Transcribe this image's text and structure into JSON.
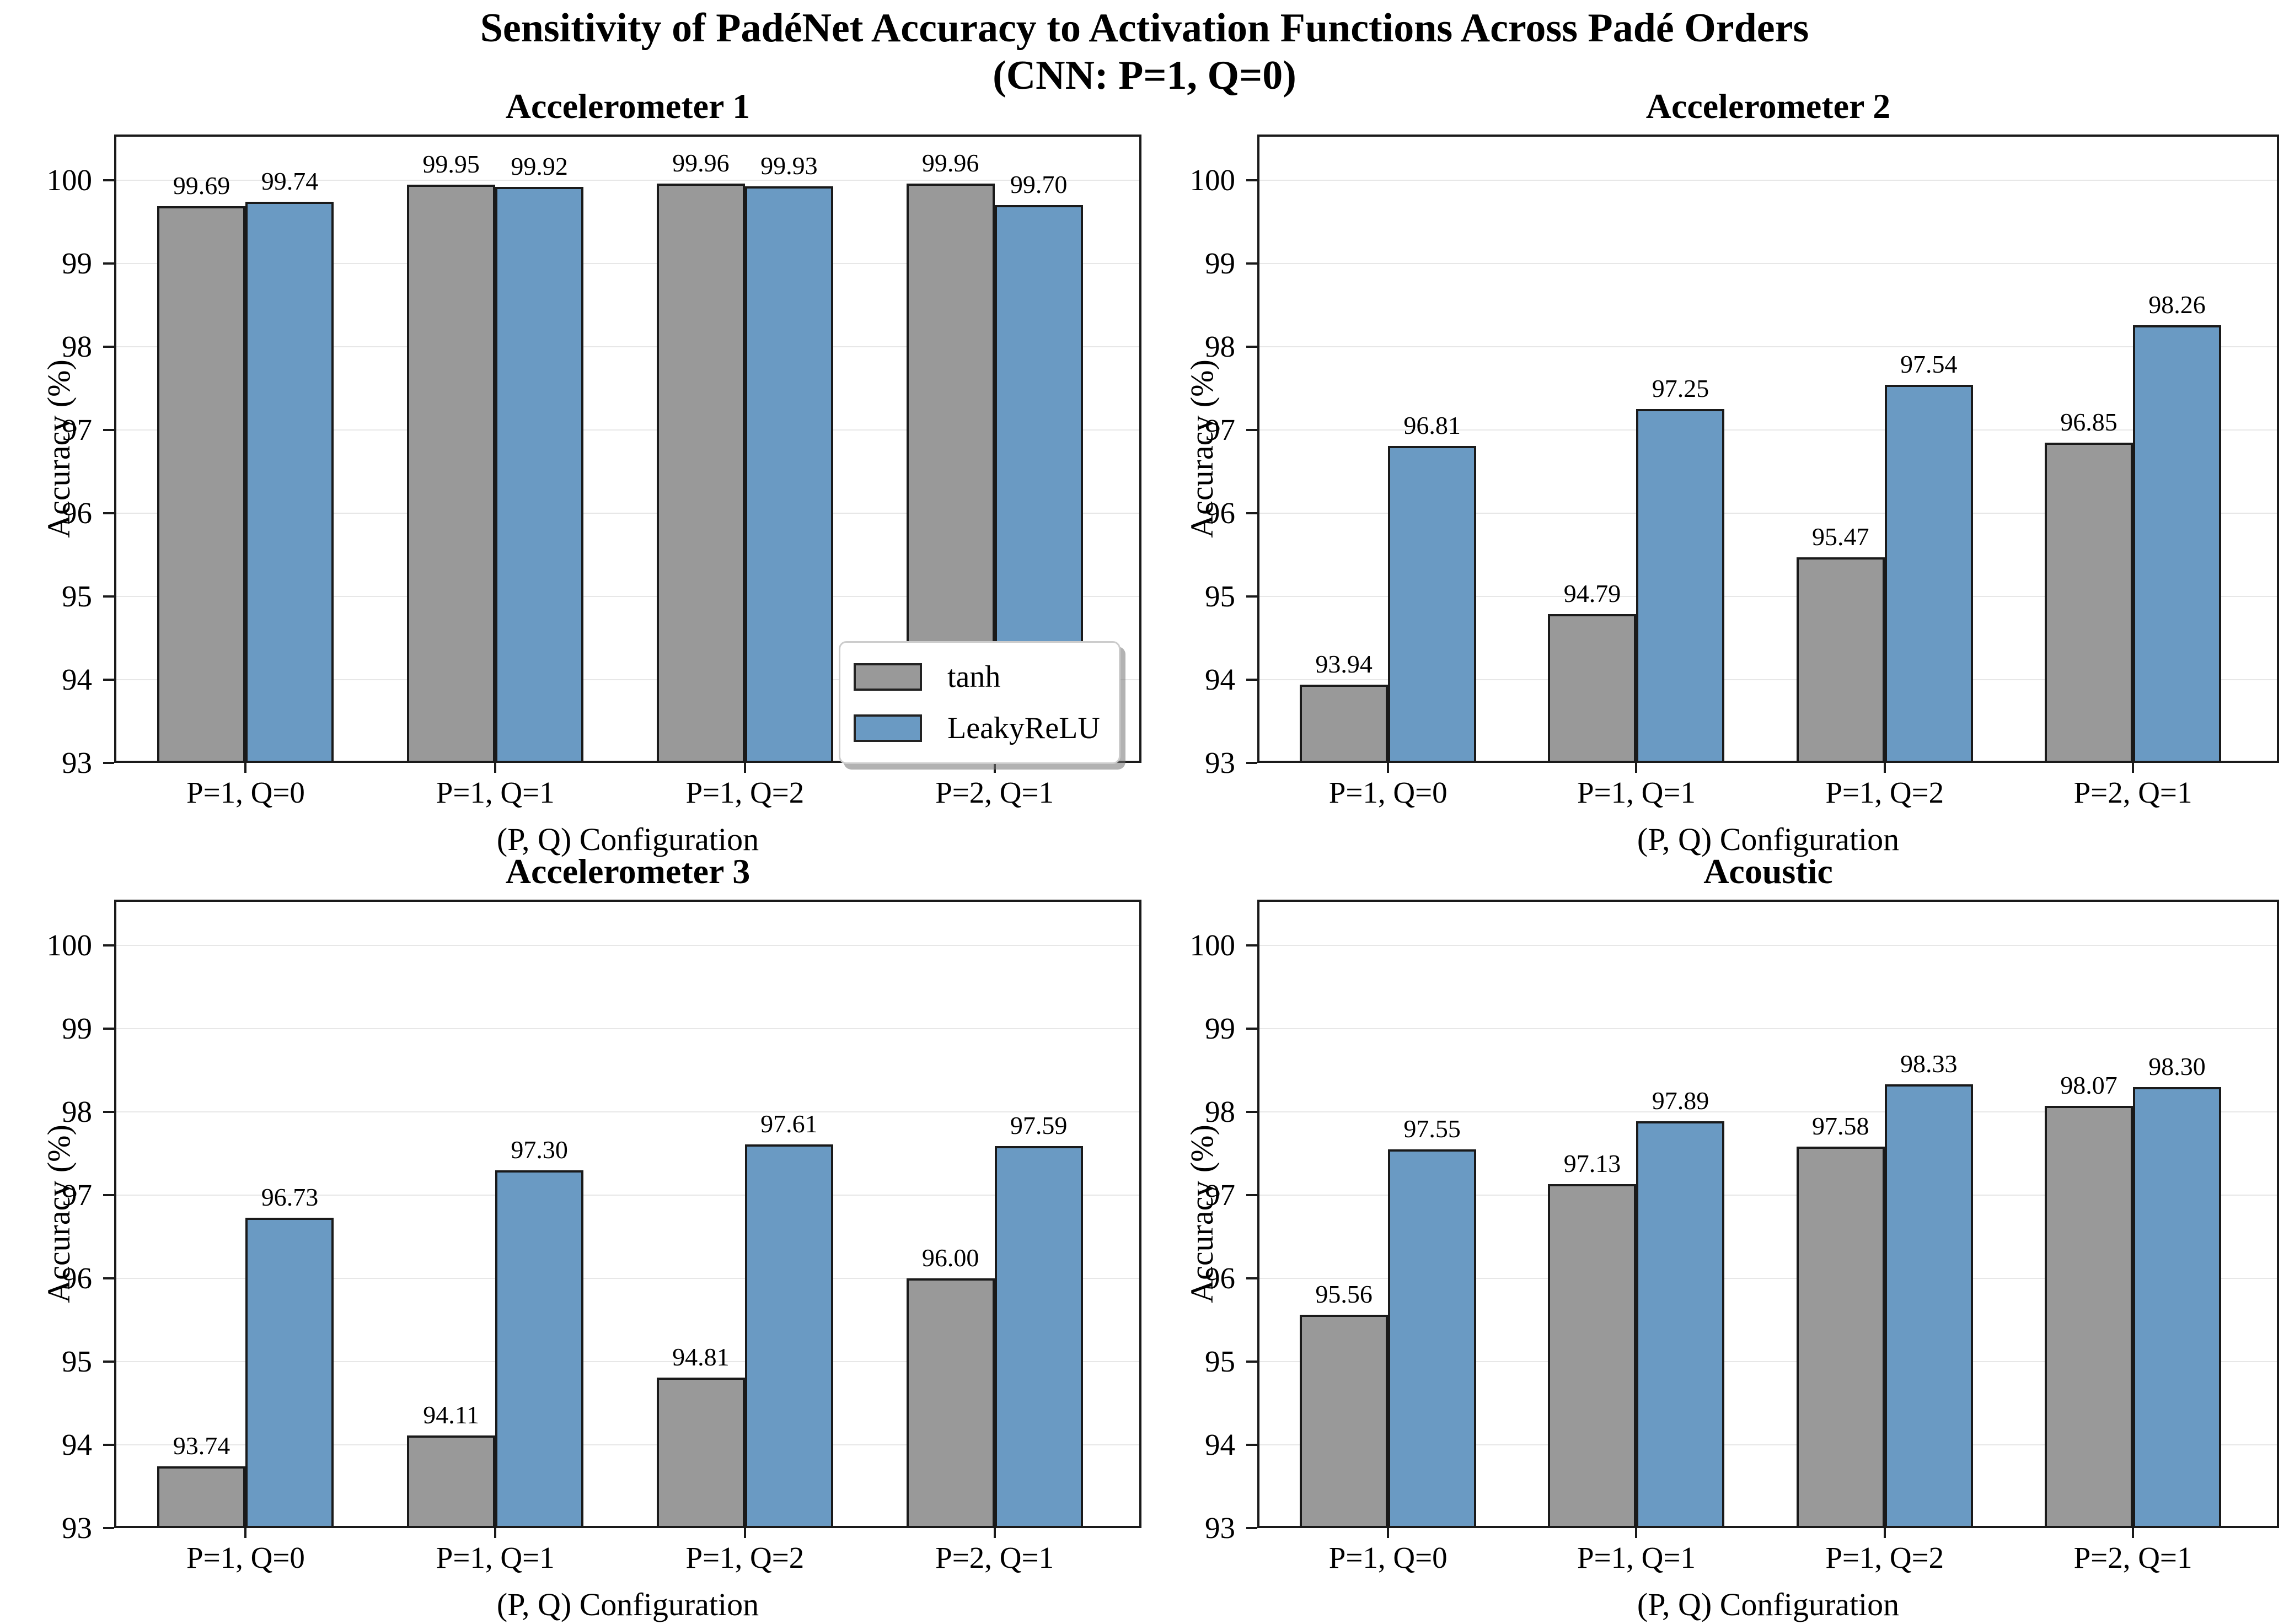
{
  "figure": {
    "title_line1": "Sensitivity of PadéNet Accuracy to Activation Functions Across Padé Orders",
    "title_line2": "(CNN: P=1, Q=0)"
  },
  "legend": {
    "items": [
      {
        "label": "tanh",
        "color": "#999999"
      },
      {
        "label": "LeakyReLU",
        "color": "#6A9AC3"
      }
    ],
    "position": "lower right of Accelerometer 1 panel"
  },
  "colors": {
    "tanh_bar": "#999999",
    "leakyrelu_bar": "#6A9AC3",
    "bar_edge": "#1a1a1a",
    "gridline": "#e7e7e7",
    "spine": "#1a1a1a",
    "text": "#000000"
  },
  "chart_data": [
    {
      "type": "bar",
      "title": "Accelerometer 1",
      "xlabel": "(P, Q) Configuration",
      "ylabel": "Accuracy (%)",
      "categories": [
        "P=1, Q=0",
        "P=1, Q=1",
        "P=1, Q=2",
        "P=2, Q=1"
      ],
      "series": [
        {
          "name": "tanh",
          "values": [
            99.69,
            99.95,
            99.96,
            99.96
          ]
        },
        {
          "name": "LeakyReLU",
          "values": [
            99.74,
            99.92,
            99.93,
            99.7
          ]
        }
      ],
      "ylim": [
        93,
        100.55
      ],
      "yticks": [
        93,
        94,
        95,
        96,
        97,
        98,
        99,
        100
      ],
      "grid": true,
      "legend_in_panel": true
    },
    {
      "type": "bar",
      "title": "Accelerometer 2",
      "xlabel": "(P, Q) Configuration",
      "ylabel": "Accuracy (%)",
      "categories": [
        "P=1, Q=0",
        "P=1, Q=1",
        "P=1, Q=2",
        "P=2, Q=1"
      ],
      "series": [
        {
          "name": "tanh",
          "values": [
            93.94,
            94.79,
            95.47,
            96.85
          ]
        },
        {
          "name": "LeakyReLU",
          "values": [
            96.81,
            97.25,
            97.54,
            98.26
          ]
        }
      ],
      "ylim": [
        93,
        100.55
      ],
      "yticks": [
        93,
        94,
        95,
        96,
        97,
        98,
        99,
        100
      ],
      "grid": true,
      "legend_in_panel": false
    },
    {
      "type": "bar",
      "title": "Accelerometer 3",
      "xlabel": "(P, Q) Configuration",
      "ylabel": "Accuracy (%)",
      "categories": [
        "P=1, Q=0",
        "P=1, Q=1",
        "P=1, Q=2",
        "P=2, Q=1"
      ],
      "series": [
        {
          "name": "tanh",
          "values": [
            93.74,
            94.11,
            94.81,
            96.0
          ]
        },
        {
          "name": "LeakyReLU",
          "values": [
            96.73,
            97.3,
            97.61,
            97.59
          ]
        }
      ],
      "ylim": [
        93,
        100.55
      ],
      "yticks": [
        93,
        94,
        95,
        96,
        97,
        98,
        99,
        100
      ],
      "grid": true,
      "legend_in_panel": false
    },
    {
      "type": "bar",
      "title": "Acoustic",
      "xlabel": "(P, Q) Configuration",
      "ylabel": "Accuracy (%)",
      "categories": [
        "P=1, Q=0",
        "P=1, Q=1",
        "P=1, Q=2",
        "P=2, Q=1"
      ],
      "series": [
        {
          "name": "tanh",
          "values": [
            95.56,
            97.13,
            97.58,
            98.07
          ]
        },
        {
          "name": "LeakyReLU",
          "values": [
            97.55,
            97.89,
            98.33,
            98.3
          ]
        }
      ],
      "ylim": [
        93,
        100.55
      ],
      "yticks": [
        93,
        94,
        95,
        96,
        97,
        98,
        99,
        100
      ],
      "grid": true,
      "legend_in_panel": false
    }
  ]
}
